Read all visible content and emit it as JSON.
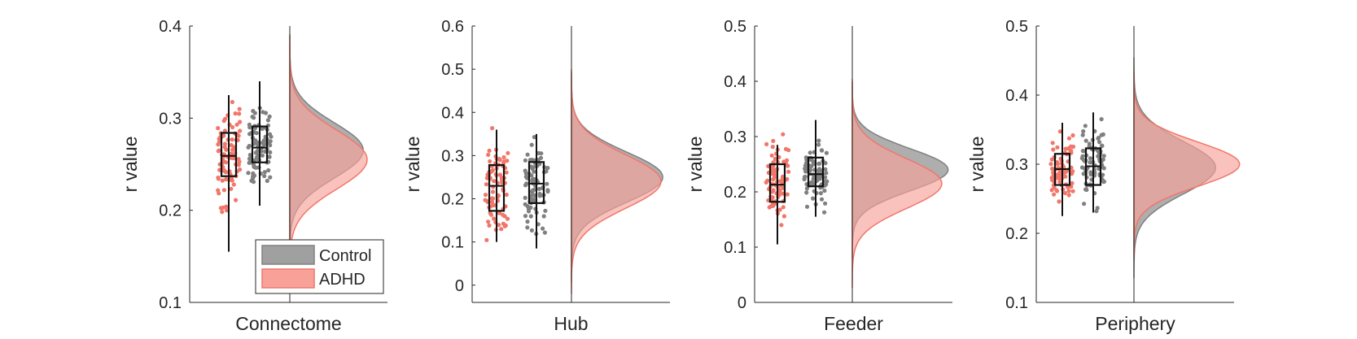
{
  "colors": {
    "control": "#808080",
    "control_fill": "#a0a0a0",
    "adhd": "#f0776a",
    "adhd_fill": "#f7a199",
    "axis": "#262626"
  },
  "legend": {
    "placement": "bottom-right of first panel",
    "items": [
      {
        "label": "Control",
        "color": "#a0a0a0"
      },
      {
        "label": "ADHD",
        "color": "#f7a199"
      }
    ]
  },
  "chart_data": [
    {
      "type": "raincloud",
      "xlabel": "Connectome",
      "ylabel": "r value",
      "ylim": [
        0.1,
        0.4
      ],
      "yticks": [
        "0.1",
        "0.2",
        "0.3",
        "0.4"
      ],
      "series": [
        {
          "name": "ADHD",
          "box": {
            "min": 0.155,
            "q1": 0.237,
            "median": 0.259,
            "q3": 0.284,
            "max": 0.325
          },
          "density": {
            "mode": 0.255,
            "sd": 0.032,
            "amp": 1.0
          },
          "range": [
            0.145,
            0.335
          ]
        },
        {
          "name": "Control",
          "box": {
            "min": 0.205,
            "q1": 0.252,
            "median": 0.268,
            "q3": 0.291,
            "max": 0.34
          },
          "density": {
            "mode": 0.265,
            "sd": 0.03,
            "amp": 0.95
          },
          "range": [
            0.195,
            0.355
          ]
        }
      ]
    },
    {
      "type": "raincloud",
      "xlabel": "Hub",
      "ylabel": "r value",
      "ylim": [
        -0.04,
        0.6
      ],
      "yticks": [
        "0",
        "0.1",
        "0.2",
        "0.3",
        "0.4",
        "0.5",
        "0.6"
      ],
      "series": [
        {
          "name": "ADHD",
          "box": {
            "min": 0.1,
            "q1": 0.172,
            "median": 0.23,
            "q3": 0.278,
            "max": 0.36
          },
          "density": {
            "mode": 0.24,
            "sd": 0.062,
            "amp": 1.0
          },
          "range": [
            0.09,
            0.41
          ]
        },
        {
          "name": "Control",
          "box": {
            "min": 0.085,
            "q1": 0.19,
            "median": 0.235,
            "q3": 0.285,
            "max": 0.35
          },
          "density": {
            "mode": 0.25,
            "sd": 0.058,
            "amp": 1.02
          },
          "range": [
            0.045,
            0.4
          ]
        }
      ]
    },
    {
      "type": "raincloud",
      "xlabel": "Feeder",
      "ylabel": "r value",
      "ylim": [
        0,
        0.5
      ],
      "yticks": [
        "0",
        "0.1",
        "0.2",
        "0.3",
        "0.4",
        "0.5"
      ],
      "series": [
        {
          "name": "ADHD",
          "box": {
            "min": 0.105,
            "q1": 0.182,
            "median": 0.213,
            "q3": 0.25,
            "max": 0.285
          },
          "density": {
            "mode": 0.215,
            "sd": 0.045,
            "amp": 1.0
          },
          "range": [
            0.09,
            0.305
          ]
        },
        {
          "name": "Control",
          "box": {
            "min": 0.155,
            "q1": 0.21,
            "median": 0.232,
            "q3": 0.262,
            "max": 0.33
          },
          "density": {
            "mode": 0.24,
            "sd": 0.038,
            "amp": 1.07
          },
          "range": [
            0.085,
            0.365
          ]
        }
      ]
    },
    {
      "type": "raincloud",
      "xlabel": "Periphery",
      "ylabel": "r value",
      "ylim": [
        0.1,
        0.5
      ],
      "yticks": [
        "0.1",
        "0.2",
        "0.3",
        "0.4",
        "0.5"
      ],
      "series": [
        {
          "name": "ADHD",
          "box": {
            "min": 0.225,
            "q1": 0.27,
            "median": 0.293,
            "q3": 0.315,
            "max": 0.36
          },
          "density": {
            "mode": 0.3,
            "sd": 0.032,
            "amp": 1.1
          },
          "range": [
            0.218,
            0.375
          ]
        },
        {
          "name": "Control",
          "box": {
            "min": 0.23,
            "q1": 0.27,
            "median": 0.297,
            "q3": 0.323,
            "max": 0.375
          },
          "density": {
            "mode": 0.295,
            "sd": 0.038,
            "amp": 0.85
          },
          "range": [
            0.195,
            0.385
          ]
        }
      ]
    }
  ]
}
